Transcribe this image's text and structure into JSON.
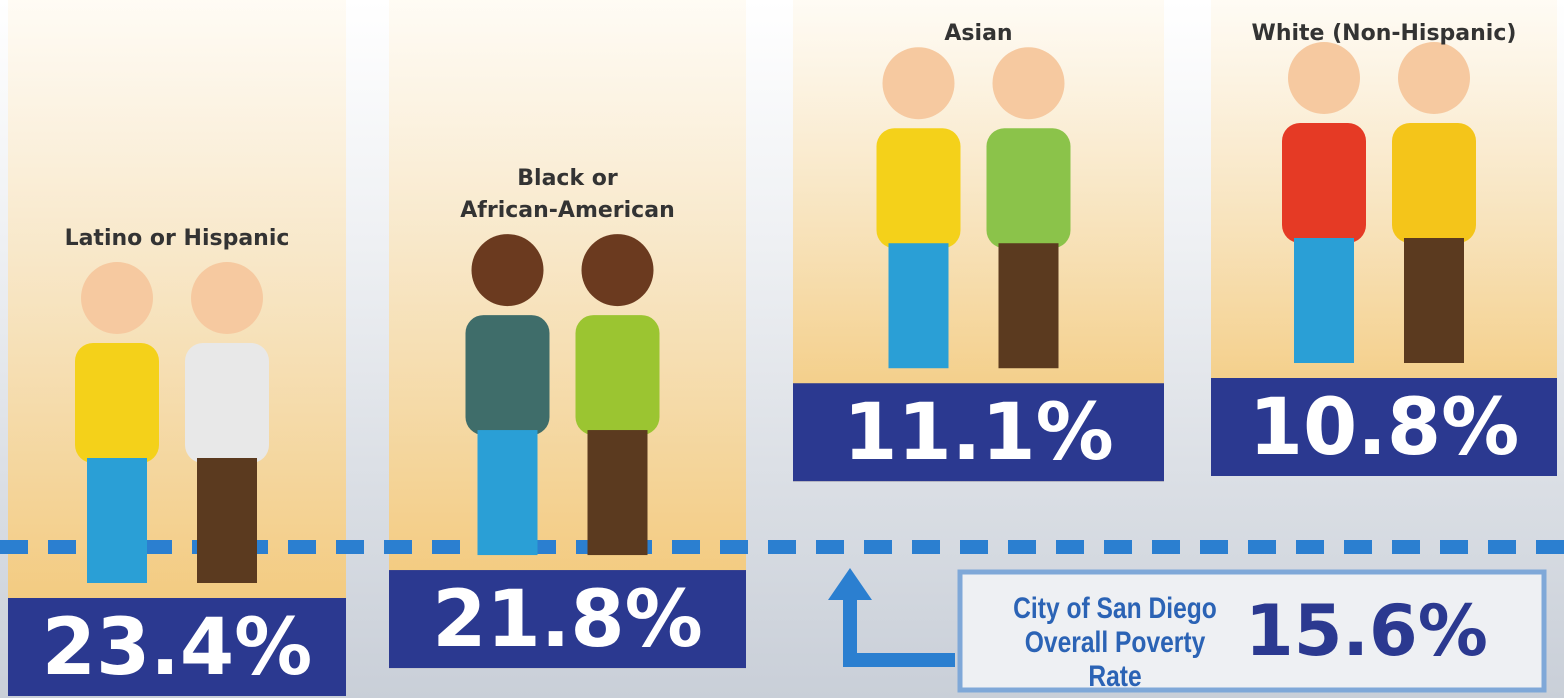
{
  "chart_data": {
    "type": "bar",
    "categories": [
      "Latino or Hispanic",
      "Black or\nAfrican-American",
      "Asian",
      "White (Non-Hispanic)"
    ],
    "values": [
      23.4,
      21.8,
      11.1,
      10.8
    ],
    "value_labels": [
      "23.4%",
      "21.8%",
      "11.1%",
      "10.8%"
    ],
    "color": "#2b3990",
    "reference": {
      "label": "City of San Diego\nOverall Poverty Rate",
      "value": 15.6,
      "value_label": "15.6%"
    }
  }
}
